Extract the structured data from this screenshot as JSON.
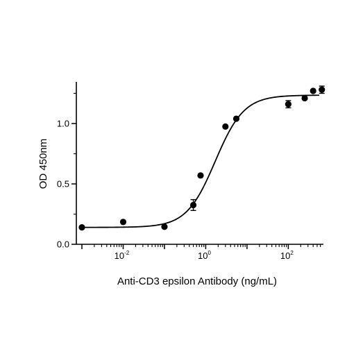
{
  "chart_data": {
    "type": "scatter",
    "xlabel": "Anti-CD3 epsilon Antibody (ng/mL)",
    "ylabel": "OD 450nm",
    "x_scale": "log",
    "xlim": [
      0.0008,
      800
    ],
    "ylim": [
      0,
      1.35
    ],
    "x_tick_labels": [
      {
        "base": "10",
        "exp": "-2",
        "value": 0.01
      },
      {
        "base": "10",
        "exp": "0",
        "value": 1
      },
      {
        "base": "10",
        "exp": "2",
        "value": 100
      }
    ],
    "y_tick_labels": [
      {
        "text": "0.0",
        "value": 0
      },
      {
        "text": "0.5",
        "value": 0.5
      },
      {
        "text": "1.0",
        "value": 1.0
      }
    ],
    "grid": false,
    "series": [
      {
        "points": [
          {
            "x": 0.001,
            "y": 0.14,
            "err": 0
          },
          {
            "x": 0.01,
            "y": 0.185,
            "err": 0
          },
          {
            "x": 0.1,
            "y": 0.145,
            "err": 0
          },
          {
            "x": 0.5,
            "y": 0.325,
            "err": 0.045
          },
          {
            "x": 0.75,
            "y": 0.57,
            "err": 0
          },
          {
            "x": 3,
            "y": 0.975,
            "err": 0
          },
          {
            "x": 5.5,
            "y": 1.04,
            "err": 0
          },
          {
            "x": 100,
            "y": 1.16,
            "err": 0.03
          },
          {
            "x": 250,
            "y": 1.21,
            "err": 0
          },
          {
            "x": 400,
            "y": 1.27,
            "err": 0
          },
          {
            "x": 650,
            "y": 1.28,
            "err": 0.03
          }
        ]
      }
    ],
    "fit_curve": {
      "model": "4PL",
      "bottom": 0.14,
      "top": 1.235,
      "ec50": 1.7,
      "hill": 1.25
    }
  }
}
